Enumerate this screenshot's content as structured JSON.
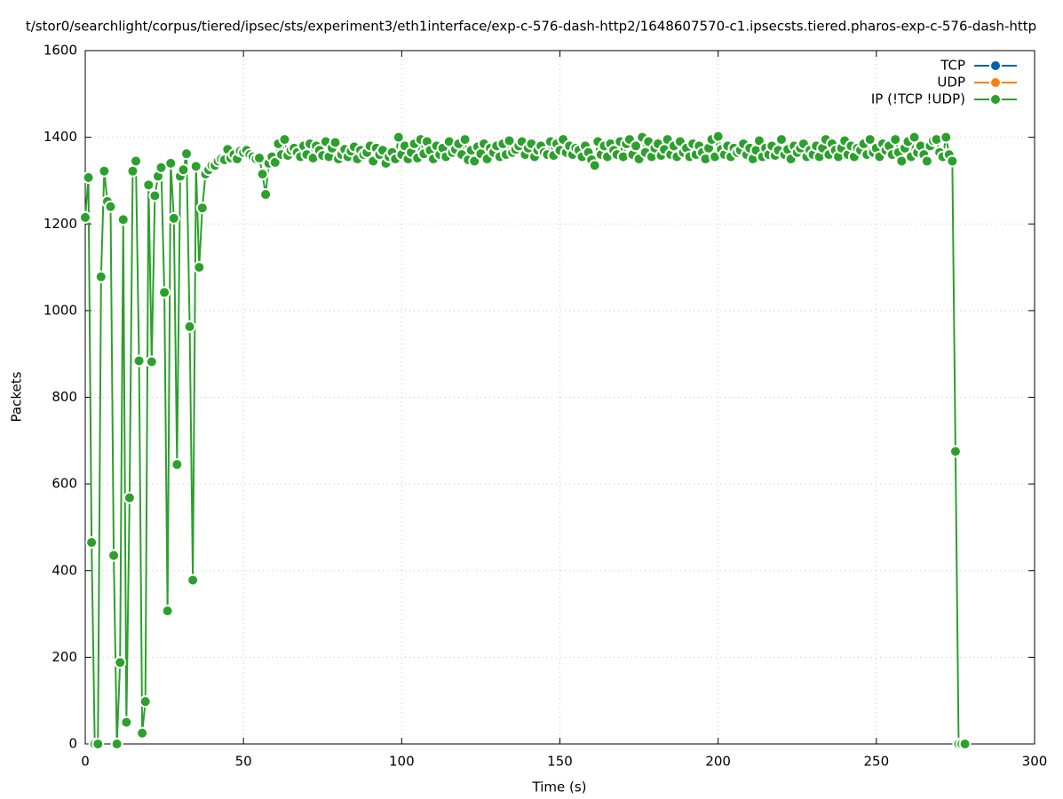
{
  "chart_data": {
    "type": "line",
    "title": "t/stor0/searchlight/corpus/tiered/ipsec/sts/experiment3/eth1interface/exp-c-576-dash-http2/1648607570-c1.ipsecsts.tiered.pharos-exp-c-576-dash-http",
    "xlabel": "Time (s)",
    "ylabel": "Packets",
    "xlim": [
      0,
      300
    ],
    "xticks": [
      0,
      50,
      100,
      150,
      200,
      250,
      300
    ],
    "ylim": [
      0,
      1600
    ],
    "yticks": [
      0,
      200,
      400,
      600,
      800,
      1000,
      1200,
      1400,
      1600
    ],
    "grid": true,
    "legend": "top-right",
    "series": [
      {
        "name": "TCP",
        "color": "#0060ad",
        "x": [],
        "values": []
      },
      {
        "name": "UDP",
        "color": "#ff7f0e",
        "x": [],
        "values": []
      },
      {
        "name": "IP (!TCP  !UDP)",
        "color": "#2ca02c",
        "x": [
          0,
          1,
          2,
          3,
          4,
          5,
          6,
          7,
          8,
          9,
          10,
          11,
          12,
          13,
          14,
          15,
          16,
          17,
          18,
          19,
          20,
          21,
          22,
          23,
          24,
          25,
          26,
          27,
          28,
          29,
          30,
          31,
          32,
          33,
          34,
          35,
          36,
          37,
          38,
          39,
          40,
          41,
          42,
          43,
          44,
          45,
          46,
          47,
          48,
          49,
          50,
          51,
          52,
          53,
          54,
          55,
          56,
          57,
          58,
          59,
          60,
          61,
          62,
          63,
          64,
          65,
          66,
          67,
          68,
          69,
          70,
          71,
          72,
          73,
          74,
          75,
          76,
          77,
          78,
          79,
          80,
          81,
          82,
          83,
          84,
          85,
          86,
          87,
          88,
          89,
          90,
          91,
          92,
          93,
          94,
          95,
          96,
          97,
          98,
          99,
          100,
          101,
          102,
          103,
          104,
          105,
          106,
          107,
          108,
          109,
          110,
          111,
          112,
          113,
          114,
          115,
          116,
          117,
          118,
          119,
          120,
          121,
          122,
          123,
          124,
          125,
          126,
          127,
          128,
          129,
          130,
          131,
          132,
          133,
          134,
          135,
          136,
          137,
          138,
          139,
          140,
          141,
          142,
          143,
          144,
          145,
          146,
          147,
          148,
          149,
          150,
          151,
          152,
          153,
          154,
          155,
          156,
          157,
          158,
          159,
          160,
          161,
          162,
          163,
          164,
          165,
          166,
          167,
          168,
          169,
          170,
          171,
          172,
          173,
          174,
          175,
          176,
          177,
          178,
          179,
          180,
          181,
          182,
          183,
          184,
          185,
          186,
          187,
          188,
          189,
          190,
          191,
          192,
          193,
          194,
          195,
          196,
          197,
          198,
          199,
          200,
          201,
          202,
          203,
          204,
          205,
          206,
          207,
          208,
          209,
          210,
          211,
          212,
          213,
          214,
          215,
          216,
          217,
          218,
          219,
          220,
          221,
          222,
          223,
          224,
          225,
          226,
          227,
          228,
          229,
          230,
          231,
          232,
          233,
          234,
          235,
          236,
          237,
          238,
          239,
          240,
          241,
          242,
          243,
          244,
          245,
          246,
          247,
          248,
          249,
          250,
          251,
          252,
          253,
          254,
          255,
          256,
          257,
          258,
          259,
          260,
          261,
          262,
          263,
          264,
          265,
          266,
          267,
          268,
          269,
          270,
          271,
          272,
          273,
          274,
          275,
          276,
          277,
          278
        ],
        "values": [
          1215,
          1307,
          465,
          0,
          0,
          1078,
          1322,
          1252,
          1240,
          435,
          0,
          188,
          1210,
          50,
          568,
          1322,
          1345,
          884,
          25,
          98,
          1290,
          882,
          1265,
          1310,
          1330,
          1042,
          307,
          1340,
          1213,
          645,
          1310,
          1325,
          1362,
          963,
          378,
          1333,
          1100,
          1237,
          1315,
          1325,
          1335,
          1335,
          1345,
          1350,
          1348,
          1372,
          1352,
          1360,
          1350,
          1368,
          1365,
          1370,
          1360,
          1355,
          1350,
          1352,
          1315,
          1268,
          1340,
          1355,
          1342,
          1385,
          1360,
          1395,
          1358,
          1370,
          1375,
          1365,
          1355,
          1380,
          1360,
          1385,
          1352,
          1380,
          1370,
          1358,
          1390,
          1355,
          1375,
          1388,
          1350,
          1360,
          1372,
          1355,
          1368,
          1378,
          1350,
          1370,
          1360,
          1365,
          1380,
          1345,
          1375,
          1360,
          1370,
          1340,
          1355,
          1365,
          1350,
          1400,
          1360,
          1380,
          1350,
          1365,
          1385,
          1352,
          1395,
          1362,
          1390,
          1370,
          1350,
          1380,
          1360,
          1375,
          1355,
          1390,
          1365,
          1372,
          1385,
          1360,
          1395,
          1348,
          1370,
          1345,
          1378,
          1362,
          1385,
          1350,
          1375,
          1365,
          1380,
          1355,
          1385,
          1360,
          1392,
          1365,
          1372,
          1380,
          1390,
          1360,
          1375,
          1385,
          1355,
          1370,
          1380,
          1365,
          1360,
          1390,
          1358,
          1385,
          1370,
          1395,
          1365,
          1380,
          1360,
          1375,
          1370,
          1355,
          1380,
          1365,
          1348,
          1335,
          1390,
          1360,
          1380,
          1355,
          1385,
          1370,
          1360,
          1390,
          1355,
          1385,
          1395,
          1360,
          1380,
          1350,
          1400,
          1365,
          1390,
          1355,
          1375,
          1385,
          1358,
          1372,
          1395,
          1360,
          1380,
          1355,
          1390,
          1365,
          1375,
          1355,
          1385,
          1360,
          1380,
          1365,
          1350,
          1375,
          1395,
          1355,
          1402,
          1372,
          1360,
          1380,
          1355,
          1375,
          1365,
          1370,
          1385,
          1360,
          1375,
          1350,
          1370,
          1392,
          1355,
          1375,
          1360,
          1380,
          1358,
          1370,
          1395,
          1360,
          1372,
          1350,
          1380,
          1365,
          1375,
          1385,
          1355,
          1370,
          1360,
          1380,
          1355,
          1375,
          1395,
          1360,
          1385,
          1370,
          1355,
          1375,
          1392,
          1360,
          1380,
          1355,
          1375,
          1370,
          1385,
          1360,
          1395,
          1365,
          1375,
          1355,
          1385,
          1370,
          1380,
          1360,
          1395,
          1365,
          1345,
          1375,
          1390,
          1355,
          1400,
          1365,
          1380,
          1360,
          1345,
          1380,
          1392,
          1395,
          1365,
          1355,
          1400,
          1360,
          1345,
          675,
          0,
          0,
          0
        ]
      }
    ]
  }
}
